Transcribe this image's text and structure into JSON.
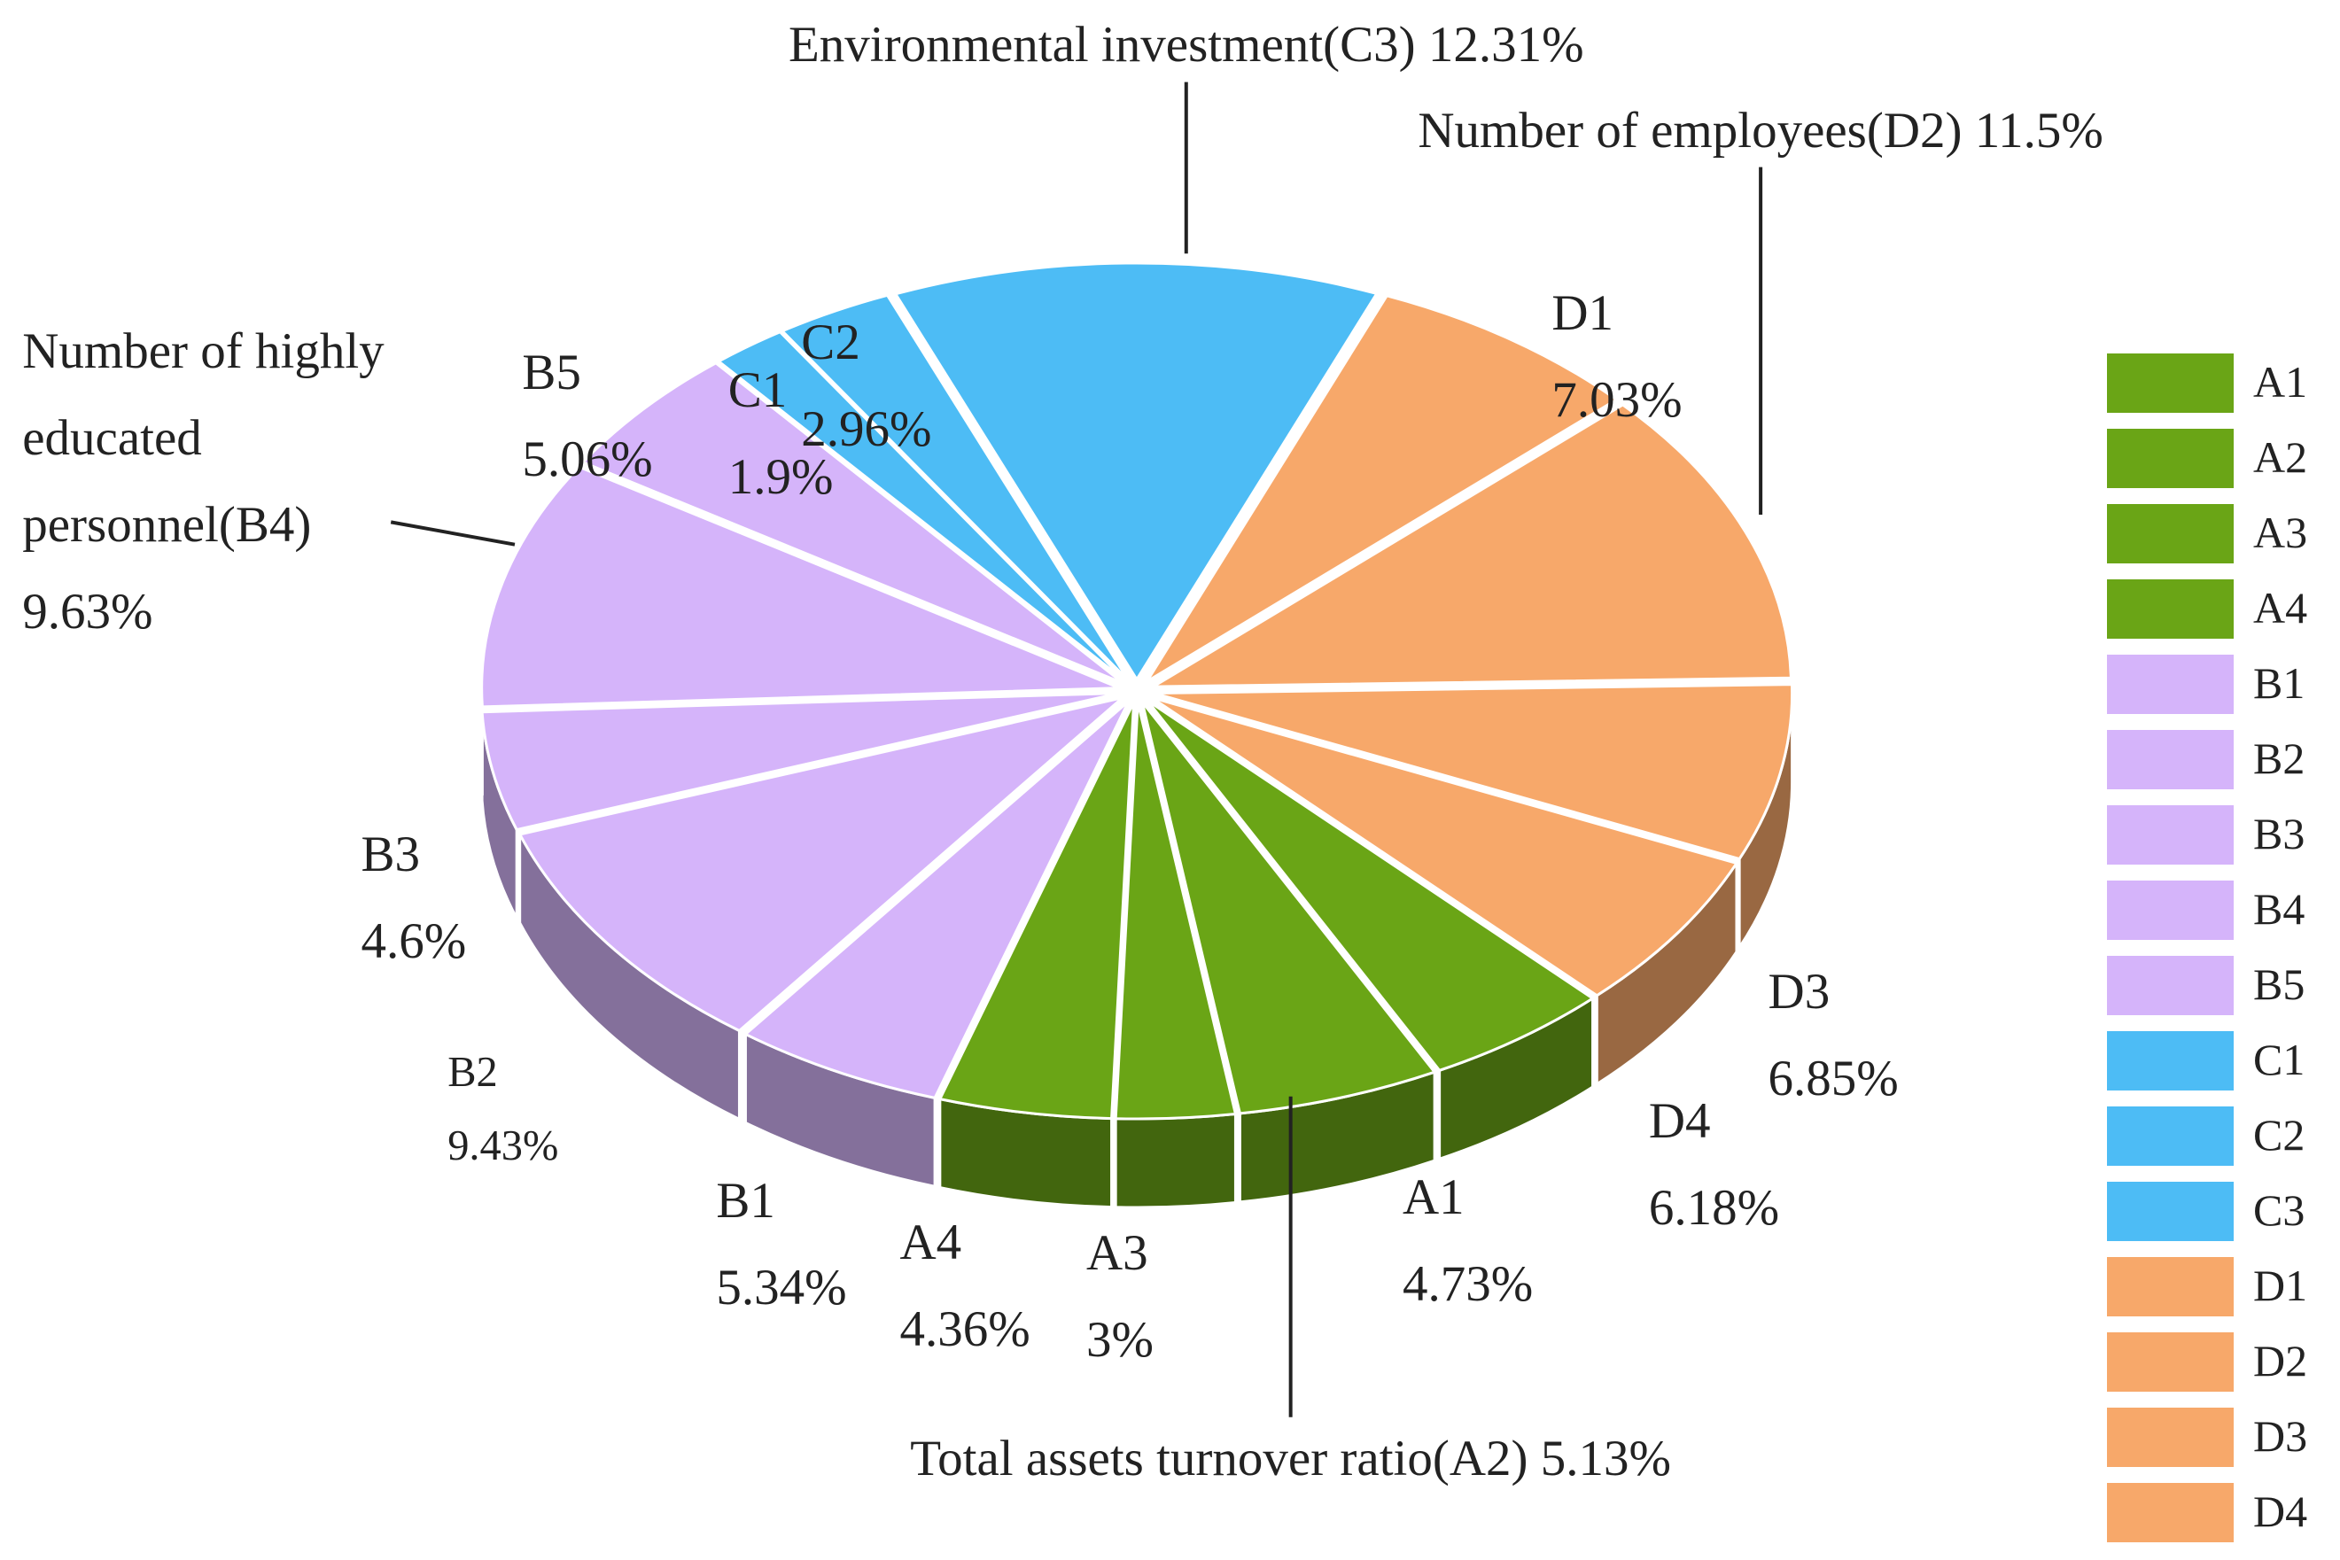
{
  "chart_data": {
    "type": "pie",
    "categories": [
      "A1",
      "A2",
      "A3",
      "A4",
      "B1",
      "B2",
      "B3",
      "B4",
      "B5",
      "C1",
      "C2",
      "C3",
      "D1",
      "D2",
      "D3",
      "D4"
    ],
    "labels": [
      "A1",
      "Total assets turnover ratio(A2)",
      "A3",
      "A4",
      "B1",
      "B2",
      "B3",
      "Number of highly educated personnel(B4)",
      "B5",
      "C1",
      "C2",
      "Environmental investment(C3)",
      "D1",
      "Number of employees(D2)",
      "D3",
      "D4"
    ],
    "values": [
      4.73,
      5.13,
      3,
      4.36,
      5.34,
      9.43,
      4.6,
      9.63,
      5.06,
      1.9,
      2.96,
      12.31,
      7.03,
      11.5,
      6.85,
      6.18
    ],
    "value_labels": [
      "4.73%",
      "5.13%",
      "3%",
      "4.36%",
      "5.34%",
      "9.43%",
      "4.6%",
      "9.63%",
      "5.06%",
      "1.9%",
      "2.96%",
      "12.31%",
      "7.03%",
      "11.5%",
      "6.85%",
      "6.18%"
    ],
    "colors": [
      "#6aa516",
      "#6aa516",
      "#6aa516",
      "#6aa516",
      "#d5b4fa",
      "#d5b4fa",
      "#d5b4fa",
      "#d5b4fa",
      "#d5b4fa",
      "#4dbcf5",
      "#4dbcf5",
      "#4dbcf5",
      "#f7a86a",
      "#f7a86a",
      "#f7a86a",
      "#f7a86a"
    ],
    "legend": "right"
  }
}
